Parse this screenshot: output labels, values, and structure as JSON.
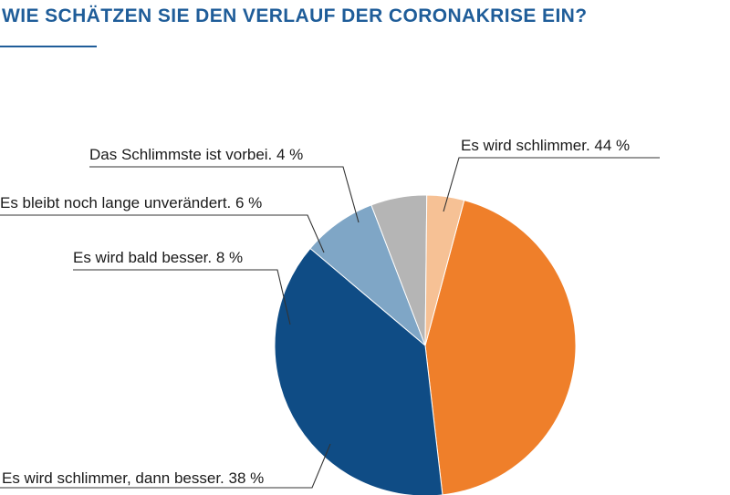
{
  "title": "WIE SCHÄTZEN SIE DEN VERLAUF DER CORONAKRISE EIN?",
  "colors": {
    "title": "#1f5d99",
    "leader_lines": "#333333"
  },
  "chart_data": {
    "type": "pie",
    "title": "WIE SCHÄTZEN SIE DEN VERLAUF DER CORONAKRISE EIN?",
    "start_angle_deg": 15,
    "direction": "clockwise",
    "legend": "none",
    "slices": [
      {
        "label": "Es wird schlimmer. 44 %",
        "category": "Es wird schlimmer.",
        "value": 44,
        "color": "#ef7f2a"
      },
      {
        "label": "Es wird schlimmer, dann besser. 38 %",
        "category": "Es wird schlimmer, dann besser.",
        "value": 38,
        "color": "#0f4c85"
      },
      {
        "label": "Es wird bald besser. 8 %",
        "category": "Es wird bald besser.",
        "value": 8,
        "color": "#7fa6c6"
      },
      {
        "label": "Es bleibt noch lange unverändert. 6 %",
        "category": "Es bleibt noch lange unverändert.",
        "value": 6,
        "color": "#b5b5b5"
      },
      {
        "label": "Das Schlimmste ist vorbei. 4 %",
        "category": "Das Schlimmste ist vorbei.",
        "value": 4,
        "color": "#f6c195"
      }
    ]
  }
}
